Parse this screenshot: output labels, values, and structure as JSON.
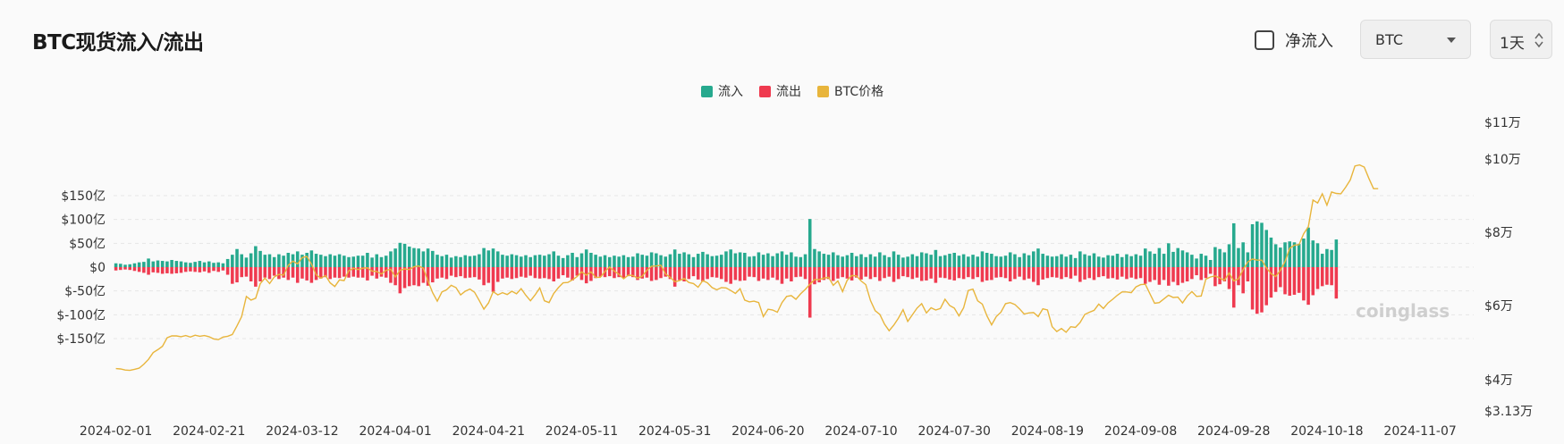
{
  "header": {
    "title": "BTC现货流入/流出"
  },
  "controls": {
    "net_flow_label": "净流入",
    "net_flow_checked": false,
    "asset_select": "BTC",
    "interval_select": "1天"
  },
  "watermark": "coinglass",
  "colors": {
    "inflow": "#26a98e",
    "outflow": "#ef3a4f",
    "price": "#e8b53c"
  },
  "chart_data": {
    "type": "bar",
    "legend": [
      "流入",
      "流出",
      "BTC价格"
    ],
    "x_tick_labels": [
      "2024-02-01",
      "2024-02-21",
      "2024-03-12",
      "2024-04-01",
      "2024-04-21",
      "2024-05-11",
      "2024-05-31",
      "2024-06-20",
      "2024-07-10",
      "2024-07-30",
      "2024-08-19",
      "2024-09-08",
      "2024-09-28",
      "2024-10-18",
      "2024-11-07"
    ],
    "y_left_ticks": [
      "$150亿",
      "$100亿",
      "$50亿",
      "$0",
      "$-50亿",
      "$-100亿",
      "$-150亿"
    ],
    "y_left_values": [
      150,
      100,
      50,
      0,
      -50,
      -100,
      -150
    ],
    "y_right_ticks": [
      "$11万",
      "$10万",
      "$8万",
      "$6万",
      "$4万",
      "$3.13万"
    ],
    "y_right_values": [
      110000,
      100000,
      80000,
      60000,
      40000,
      31300
    ],
    "y_left_unit": "亿 USD",
    "date_start": "2024-02-01",
    "inflow": [
      8,
      7,
      5,
      6,
      8,
      10,
      11,
      18,
      12,
      14,
      13,
      12,
      15,
      13,
      12,
      10,
      9,
      11,
      13,
      10,
      12,
      9,
      10,
      8,
      17,
      26,
      38,
      27,
      20,
      29,
      44,
      34,
      26,
      27,
      21,
      27,
      24,
      30,
      27,
      33,
      26,
      30,
      35,
      28,
      26,
      23,
      27,
      24,
      27,
      24,
      21,
      22,
      24,
      24,
      30,
      20,
      27,
      21,
      24,
      33,
      39,
      51,
      49,
      43,
      40,
      39,
      33,
      39,
      34,
      26,
      23,
      26,
      20,
      23,
      21,
      25,
      23,
      24,
      27,
      40,
      35,
      39,
      33,
      26,
      24,
      27,
      25,
      22,
      25,
      21,
      25,
      26,
      24,
      27,
      33,
      24,
      19,
      25,
      30,
      21,
      29,
      37,
      30,
      26,
      22,
      25,
      21,
      24,
      22,
      25,
      21,
      22,
      29,
      26,
      24,
      31,
      29,
      25,
      22,
      27,
      37,
      28,
      31,
      27,
      21,
      28,
      32,
      27,
      23,
      24,
      26,
      33,
      37,
      29,
      31,
      30,
      22,
      23,
      31,
      26,
      29,
      23,
      29,
      33,
      26,
      31,
      22,
      21,
      27,
      101,
      38,
      33,
      28,
      26,
      31,
      25,
      22,
      25,
      30,
      23,
      27,
      21,
      27,
      22,
      31,
      25,
      21,
      33,
      26,
      20,
      22,
      27,
      23,
      31,
      29,
      26,
      36,
      23,
      25,
      28,
      30,
      24,
      27,
      22,
      26,
      22,
      33,
      30,
      28,
      23,
      22,
      24,
      31,
      27,
      21,
      29,
      25,
      33,
      39,
      28,
      24,
      22,
      23,
      27,
      22,
      26,
      19,
      33,
      27,
      24,
      29,
      22,
      20,
      25,
      24,
      28,
      21,
      27,
      23,
      27,
      24,
      39,
      33,
      28,
      40,
      28,
      50,
      32,
      40,
      35,
      31,
      26,
      18,
      28,
      24,
      15,
      42,
      38,
      31,
      48,
      92,
      40,
      52,
      31,
      90,
      96,
      93,
      78,
      62,
      48,
      41,
      52,
      54,
      52,
      49,
      60,
      83,
      56,
      50,
      28,
      38,
      36,
      58
    ],
    "outflow": [
      7,
      6,
      5,
      6,
      8,
      10,
      12,
      16,
      11,
      12,
      14,
      13,
      14,
      13,
      12,
      10,
      9,
      10,
      11,
      9,
      12,
      8,
      10,
      7,
      16,
      35,
      32,
      21,
      20,
      30,
      41,
      30,
      22,
      25,
      18,
      25,
      22,
      27,
      22,
      33,
      24,
      28,
      33,
      27,
      24,
      21,
      25,
      22,
      23,
      20,
      22,
      20,
      22,
      22,
      28,
      18,
      24,
      20,
      22,
      33,
      38,
      55,
      44,
      40,
      38,
      40,
      33,
      39,
      32,
      24,
      22,
      25,
      18,
      21,
      19,
      23,
      22,
      21,
      26,
      38,
      33,
      52,
      31,
      24,
      22,
      25,
      23,
      20,
      22,
      18,
      23,
      24,
      23,
      25,
      30,
      24,
      17,
      22,
      28,
      18,
      27,
      34,
      29,
      23,
      20,
      21,
      19,
      23,
      21,
      23,
      19,
      21,
      27,
      24,
      22,
      29,
      27,
      23,
      20,
      25,
      41,
      27,
      30,
      25,
      19,
      26,
      30,
      25,
      21,
      22,
      25,
      31,
      35,
      27,
      29,
      28,
      20,
      21,
      29,
      24,
      27,
      22,
      27,
      35,
      24,
      30,
      21,
      20,
      25,
      106,
      36,
      32,
      27,
      25,
      29,
      24,
      21,
      24,
      28,
      22,
      26,
      20,
      25,
      21,
      29,
      23,
      20,
      31,
      25,
      19,
      21,
      25,
      22,
      29,
      28,
      24,
      33,
      22,
      23,
      26,
      28,
      23,
      25,
      21,
      25,
      21,
      31,
      28,
      27,
      22,
      21,
      23,
      30,
      25,
      20,
      27,
      24,
      31,
      38,
      26,
      23,
      21,
      22,
      25,
      21,
      24,
      18,
      31,
      26,
      23,
      27,
      21,
      19,
      24,
      23,
      26,
      20,
      25,
      22,
      25,
      23,
      35,
      31,
      27,
      37,
      27,
      39,
      31,
      38,
      33,
      30,
      25,
      17,
      27,
      23,
      14,
      40,
      36,
      30,
      46,
      85,
      38,
      55,
      30,
      89,
      98,
      95,
      80,
      64,
      52,
      42,
      57,
      60,
      58,
      54,
      70,
      79,
      59,
      46,
      40,
      37,
      38,
      66
    ],
    "price": [
      43000,
      42900,
      42600,
      42500,
      42800,
      43100,
      44200,
      45500,
      47300,
      48100,
      49000,
      51300,
      51800,
      51800,
      51600,
      51900,
      51500,
      52000,
      51700,
      51900,
      51600,
      51000,
      50800,
      51500,
      51700,
      52200,
      54500,
      57000,
      62500,
      61500,
      62000,
      66000,
      67500,
      66000,
      67800,
      68500,
      68300,
      71000,
      72100,
      71400,
      73100,
      73400,
      71300,
      68400,
      67500,
      68200,
      66200,
      65200,
      67000,
      66800,
      69500,
      70200,
      69800,
      70200,
      70300,
      69400,
      69300,
      68600,
      69600,
      69900,
      67800,
      69600,
      70000,
      69800,
      70600,
      70800,
      70200,
      66700,
      63500,
      61200,
      63700,
      64300,
      65500,
      64900,
      62900,
      63900,
      64500,
      63600,
      61400,
      59000,
      60700,
      63800,
      62900,
      63500,
      63000,
      63900,
      63200,
      64600,
      62800,
      61300,
      62900,
      64800,
      61300,
      60800,
      63300,
      64900,
      66200,
      66300,
      67000,
      67900,
      69200,
      68300,
      69200,
      67700,
      67700,
      69300,
      70500,
      69400,
      68500,
      67300,
      68300,
      68200,
      67500,
      68000,
      69600,
      70700,
      70800,
      71000,
      68600,
      67700,
      66500,
      66800,
      67400,
      66300,
      66000,
      65000,
      66800,
      66200,
      64900,
      64300,
      64900,
      64800,
      64100,
      63300,
      64600,
      61500,
      61000,
      61200,
      60800,
      57000,
      59000,
      58800,
      58200,
      60800,
      62500,
      62700,
      61700,
      63200,
      64400,
      65800,
      67100,
      67100,
      67500,
      67700,
      65500,
      66700,
      63800,
      66900,
      68200,
      68100,
      66700,
      65700,
      61400,
      58600,
      57600,
      55000,
      53200,
      54700,
      56600,
      58900,
      55700,
      57500,
      59300,
      60500,
      58000,
      59400,
      58800,
      59200,
      61700,
      60000,
      59300,
      57200,
      59400,
      64100,
      64500,
      61300,
      60400,
      57200,
      54800,
      57000,
      58200,
      60500,
      60800,
      60300,
      59100,
      57700,
      58000,
      58100,
      57000,
      59100,
      58800,
      54300,
      53000,
      53800,
      52800,
      54300,
      54100,
      55400,
      57600,
      58200,
      58700,
      60400,
      59200,
      60700,
      61700,
      62800,
      63700,
      63700,
      63500,
      65100,
      65700,
      65800,
      63200,
      60600,
      60800,
      61800,
      62800,
      62200,
      62300,
      60700,
      62600,
      63800,
      62500,
      62600,
      67200,
      67800,
      68100,
      67500,
      66900,
      68900,
      66700,
      67300,
      69800,
      71900,
      72700,
      72400,
      72400,
      70300,
      68700,
      67900,
      69600,
      72000,
      75600,
      76500,
      76600,
      79600,
      81500,
      88800,
      88000,
      90500,
      87400,
      91000,
      90600,
      90500,
      92300,
      94300,
      98100,
      98400,
      97800,
      94700,
      91900,
      91900
    ]
  }
}
